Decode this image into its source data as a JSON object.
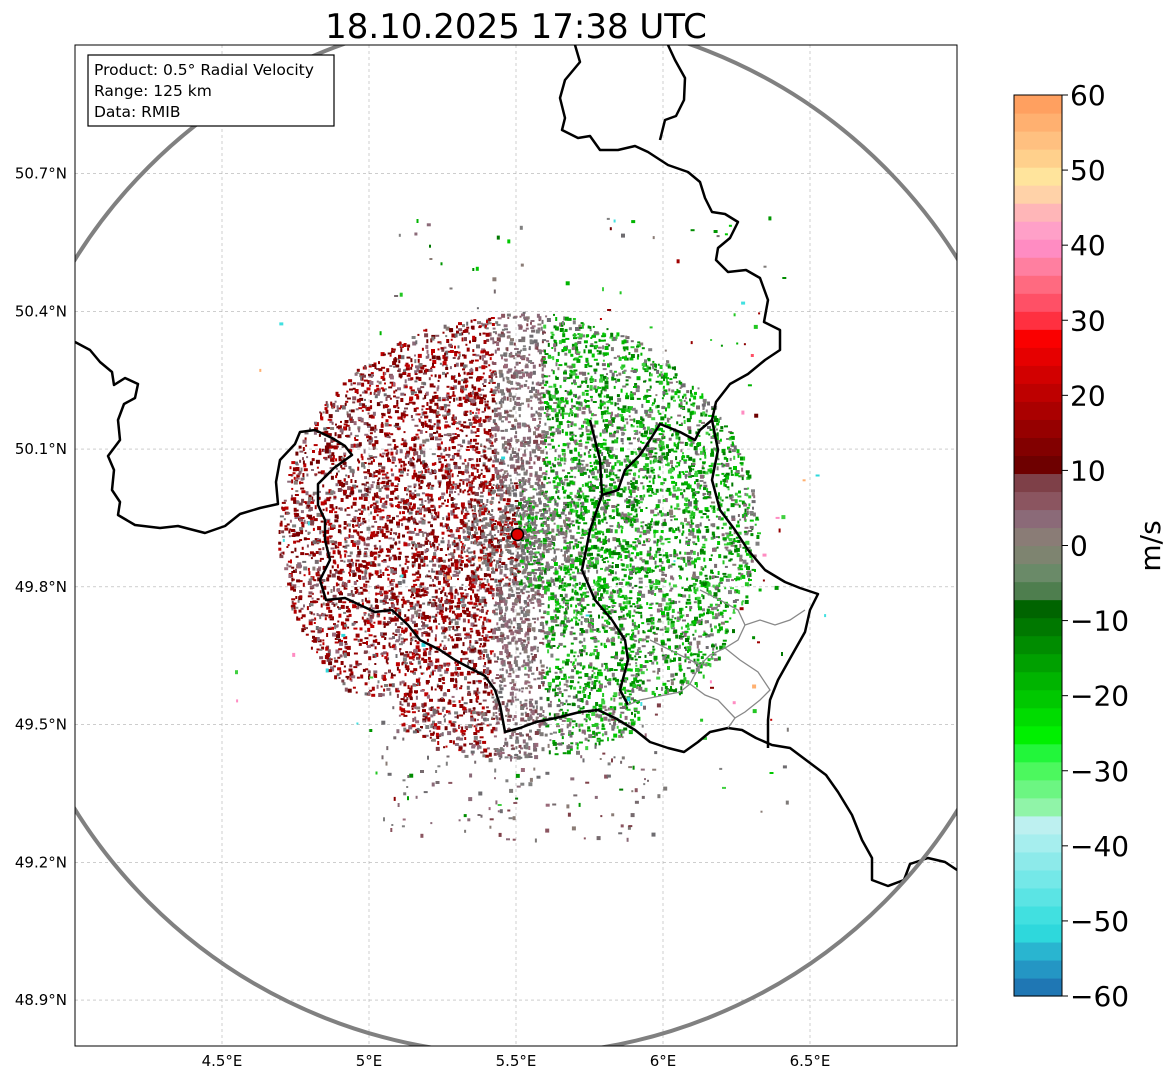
{
  "title": "18.10.2025 17:38 UTC",
  "info": {
    "line1": "Product: 0.5° Radial Velocity",
    "line2": "Range: 125 km",
    "line3": "Data: RMIB"
  },
  "map_extent": {
    "lon_min": 4.0,
    "lon_max": 7.0,
    "lat_min": 48.8,
    "lat_max": 50.98
  },
  "radar_site": {
    "lon": 5.505,
    "lat": 49.914
  },
  "lon_ticks": [
    {
      "value": 4.5,
      "label": "4.5°E"
    },
    {
      "value": 5.0,
      "label": "5°E"
    },
    {
      "value": 5.5,
      "label": "5.5°E"
    },
    {
      "value": 6.0,
      "label": "6°E"
    },
    {
      "value": 6.5,
      "label": "6.5°E"
    }
  ],
  "lat_ticks": [
    {
      "value": 50.7,
      "label": "50.7°N"
    },
    {
      "value": 50.4,
      "label": "50.4°N"
    },
    {
      "value": 50.1,
      "label": "50.1°N"
    },
    {
      "value": 49.8,
      "label": "49.8°N"
    },
    {
      "value": 49.5,
      "label": "49.5°N"
    },
    {
      "value": 49.2,
      "label": "49.2°N"
    },
    {
      "value": 48.9,
      "label": "48.9°N"
    }
  ],
  "colorbar": {
    "label": "m/s",
    "min": -60,
    "max": 60,
    "ticks": [
      {
        "value": 60,
        "label": "60"
      },
      {
        "value": 50,
        "label": "50"
      },
      {
        "value": 40,
        "label": "40"
      },
      {
        "value": 30,
        "label": "30"
      },
      {
        "value": 20,
        "label": "20"
      },
      {
        "value": 10,
        "label": "10"
      },
      {
        "value": 0,
        "label": "0"
      },
      {
        "value": -10,
        "label": "−10"
      },
      {
        "value": -20,
        "label": "−20"
      },
      {
        "value": -30,
        "label": "−30"
      },
      {
        "value": -40,
        "label": "−40"
      },
      {
        "value": -50,
        "label": "−50"
      },
      {
        "value": -60,
        "label": "−60"
      }
    ],
    "colors": [
      "#1f77b4",
      "#2496c4",
      "#29b5d0",
      "#2ed8dc",
      "#41e0e0",
      "#5be4e4",
      "#74e8e8",
      "#8deaea",
      "#a6eeee",
      "#bdf0f0",
      "#90f4a8",
      "#6cf682",
      "#4cf85e",
      "#22f63a",
      "#00f000",
      "#00dc00",
      "#00c800",
      "#00b400",
      "#00a000",
      "#008c00",
      "#007800",
      "#006400",
      "#4e7e4e",
      "#6a8a68",
      "#7e8470",
      "#8a7c76",
      "#8b6a78",
      "#8b5560",
      "#7e4048",
      "#6e0000",
      "#820000",
      "#960000",
      "#aa0000",
      "#be0000",
      "#d20000",
      "#e60000",
      "#fa0000",
      "#ff3040",
      "#ff5066",
      "#ff6a80",
      "#ff7fa0",
      "#ff8cc2",
      "#ffa0c8",
      "#ffb6b8",
      "#ffd2a8",
      "#ffe49c",
      "#ffd08c",
      "#ffc080",
      "#ffb070",
      "#ffa060"
    ]
  },
  "colors": {
    "range_ring": "#808080",
    "border": "#000000",
    "admin": "#888888",
    "radar_marker": "#e00000",
    "grid": "#b0b0b0"
  }
}
